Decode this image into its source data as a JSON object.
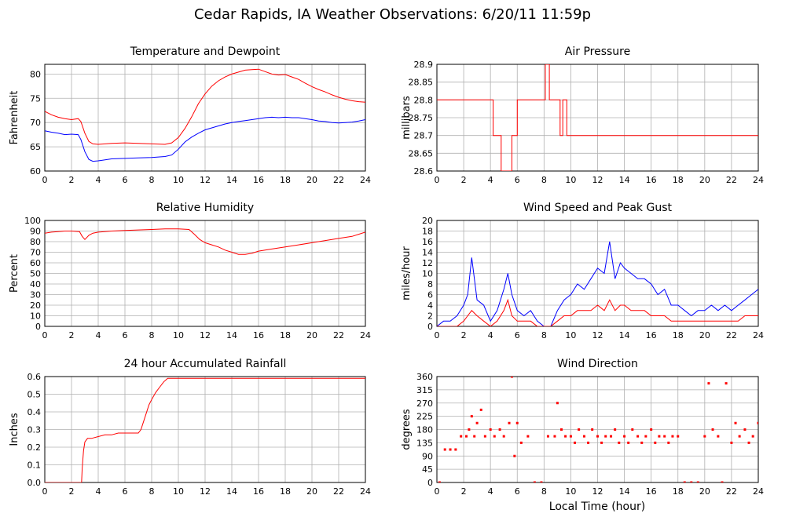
{
  "title": "Cedar Rapids, IA Weather Observations: 6/20/11 11:59p",
  "xlabel": "Local Time (hour)",
  "colors": {
    "red": "#ff0000",
    "blue": "#0000ff",
    "grid": "#b0b0b0"
  },
  "chart_data": [
    {
      "id": "temp",
      "type": "line",
      "title": "Temperature and Dewpoint",
      "ylabel": "Fahrenheit",
      "xlim": [
        0,
        24
      ],
      "ylim": [
        60,
        82
      ],
      "xticks": [
        0,
        2,
        4,
        6,
        8,
        10,
        12,
        14,
        16,
        18,
        20,
        22,
        24
      ],
      "yticks": [
        60,
        65,
        70,
        75,
        80
      ],
      "grid": true,
      "series": [
        {
          "color": "#ff0000",
          "x": [
            0,
            0.5,
            1,
            1.5,
            2,
            2.5,
            2.7,
            3.0,
            3.3,
            3.6,
            4,
            5,
            6,
            7,
            8,
            9,
            9.5,
            10,
            10.5,
            11,
            11.5,
            12,
            12.5,
            13,
            13.5,
            14,
            14.5,
            15,
            15.5,
            16,
            16.5,
            17,
            17.5,
            18,
            18.5,
            19,
            19.5,
            20,
            20.5,
            21,
            21.5,
            22,
            22.5,
            23,
            23.5,
            24
          ],
          "y": [
            72.3,
            71.6,
            71.1,
            70.8,
            70.6,
            70.8,
            70.2,
            67.8,
            66.1,
            65.6,
            65.5,
            65.7,
            65.8,
            65.7,
            65.6,
            65.5,
            65.8,
            66.9,
            68.8,
            71.2,
            73.9,
            75.9,
            77.5,
            78.6,
            79.4,
            80.0,
            80.4,
            80.8,
            80.9,
            81.0,
            80.5,
            80.0,
            79.8,
            79.9,
            79.4,
            78.9,
            78.1,
            77.4,
            76.8,
            76.3,
            75.7,
            75.2,
            74.8,
            74.5,
            74.3,
            74.2
          ]
        },
        {
          "color": "#0000ff",
          "x": [
            0,
            0.5,
            1,
            1.5,
            2,
            2.5,
            2.7,
            3.0,
            3.3,
            3.6,
            4,
            5,
            6,
            7,
            8,
            9,
            9.5,
            10,
            10.5,
            11,
            11.5,
            12,
            12.5,
            13,
            13.5,
            14,
            14.5,
            15,
            15.5,
            16,
            16.5,
            17,
            17.5,
            18,
            18.5,
            19,
            19.5,
            20,
            20.5,
            21,
            21.5,
            22,
            22.5,
            23,
            23.5,
            24
          ],
          "y": [
            68.3,
            68.0,
            67.8,
            67.5,
            67.6,
            67.5,
            66.5,
            64.0,
            62.4,
            62.0,
            62.1,
            62.5,
            62.6,
            62.7,
            62.8,
            63.0,
            63.3,
            64.5,
            66.0,
            67.0,
            67.8,
            68.5,
            68.9,
            69.3,
            69.7,
            70.0,
            70.2,
            70.4,
            70.6,
            70.8,
            71.0,
            71.1,
            71.0,
            71.1,
            71.0,
            71.0,
            70.8,
            70.6,
            70.3,
            70.2,
            70.0,
            69.9,
            70.0,
            70.1,
            70.3,
            70.6
          ]
        }
      ]
    },
    {
      "id": "pressure",
      "type": "line",
      "title": "Air Pressure",
      "ylabel": "millibars",
      "xlim": [
        0,
        24
      ],
      "ylim": [
        28.6,
        28.9
      ],
      "xticks": [
        0,
        2,
        4,
        6,
        8,
        10,
        12,
        14,
        16,
        18,
        20,
        22,
        24
      ],
      "yticks": [
        28.6,
        28.65,
        28.7,
        28.75,
        28.8,
        28.85,
        28.9
      ],
      "ytick_labels": [
        "28.6",
        "28.65",
        "28.7",
        "28.75",
        "28.8",
        "28.85",
        "28.9"
      ],
      "grid": true,
      "series": [
        {
          "color": "#ff0000",
          "step": true,
          "x": [
            0,
            4.2,
            4.2,
            4.8,
            4.8,
            5.6,
            5.6,
            6.0,
            6.0,
            8.1,
            8.1,
            8.4,
            8.4,
            9.2,
            9.2,
            9.4,
            9.4,
            9.7,
            9.7,
            24
          ],
          "y": [
            28.8,
            28.8,
            28.7,
            28.7,
            28.6,
            28.6,
            28.7,
            28.7,
            28.8,
            28.8,
            28.9,
            28.9,
            28.8,
            28.8,
            28.7,
            28.7,
            28.8,
            28.8,
            28.7,
            28.7
          ]
        }
      ]
    },
    {
      "id": "humidity",
      "type": "line",
      "title": "Relative Humidity",
      "ylabel": "Percent",
      "xlim": [
        0,
        24
      ],
      "ylim": [
        0,
        100
      ],
      "xticks": [
        0,
        2,
        4,
        6,
        8,
        10,
        12,
        14,
        16,
        18,
        20,
        22,
        24
      ],
      "yticks": [
        0,
        10,
        20,
        30,
        40,
        50,
        60,
        70,
        80,
        90,
        100
      ],
      "grid": true,
      "series": [
        {
          "color": "#ff0000",
          "x": [
            0,
            0.5,
            1,
            1.5,
            2,
            2.6,
            2.8,
            3.0,
            3.3,
            3.6,
            4,
            5,
            6,
            7,
            8,
            9,
            10,
            10.8,
            11.2,
            11.6,
            12,
            12.5,
            13,
            13.5,
            14,
            14.5,
            15,
            15.5,
            16,
            17,
            18,
            19,
            20,
            21,
            22,
            23,
            23.5,
            24
          ],
          "y": [
            88,
            89,
            89.5,
            90,
            90,
            89.5,
            85,
            82,
            86,
            88,
            89,
            90,
            90.5,
            91,
            91.5,
            92,
            92,
            91.5,
            87,
            82,
            79,
            77,
            75,
            72,
            70,
            68,
            68,
            69,
            71,
            73,
            75,
            77,
            79,
            81,
            83,
            85,
            87,
            89
          ]
        }
      ]
    },
    {
      "id": "wind",
      "type": "line",
      "title": "Wind Speed and Peak Gust",
      "ylabel": "miles/hour",
      "xlim": [
        0,
        24
      ],
      "ylim": [
        0,
        20
      ],
      "xticks": [
        0,
        2,
        4,
        6,
        8,
        10,
        12,
        14,
        16,
        18,
        20,
        22,
        24
      ],
      "yticks": [
        0,
        2,
        4,
        6,
        8,
        10,
        12,
        14,
        16,
        18,
        20
      ],
      "grid": true,
      "series": [
        {
          "color": "#0000ff",
          "x": [
            0,
            0.5,
            1,
            1.5,
            2,
            2.3,
            2.6,
            3,
            3.5,
            4,
            4.5,
            5,
            5.3,
            5.6,
            6,
            6.5,
            7,
            7.5,
            8,
            8.5,
            9,
            9.5,
            10,
            10.5,
            11,
            11.5,
            12,
            12.5,
            12.9,
            13.3,
            13.7,
            14,
            14.5,
            15,
            15.5,
            16,
            16.5,
            17,
            17.5,
            18,
            18.5,
            19,
            19.5,
            20,
            20.5,
            21,
            21.5,
            22,
            22.5,
            23,
            23.5,
            24
          ],
          "y": [
            0,
            1,
            1,
            2,
            4,
            6,
            13,
            5,
            4,
            1,
            3,
            7,
            10,
            6,
            3,
            2,
            3,
            1,
            0,
            0,
            3,
            5,
            6,
            8,
            7,
            9,
            11,
            10,
            16,
            9,
            12,
            11,
            10,
            9,
            9,
            8,
            6,
            7,
            4,
            4,
            3,
            2,
            3,
            3,
            4,
            3,
            4,
            3,
            4,
            5,
            6,
            7
          ]
        },
        {
          "color": "#ff0000",
          "x": [
            0,
            0.5,
            1,
            1.5,
            2,
            2.3,
            2.6,
            3,
            3.5,
            4,
            4.5,
            5,
            5.3,
            5.6,
            6,
            6.5,
            7,
            7.5,
            8,
            8.5,
            9,
            9.5,
            10,
            10.5,
            11,
            11.5,
            12,
            12.5,
            12.9,
            13.3,
            13.7,
            14,
            14.5,
            15,
            15.5,
            16,
            16.5,
            17,
            17.5,
            18,
            18.5,
            19,
            19.5,
            20,
            20.5,
            21,
            21.5,
            22,
            22.5,
            23,
            23.5,
            24
          ],
          "y": [
            0,
            0,
            0,
            0,
            1,
            2,
            3,
            2,
            1,
            0,
            1,
            3,
            5,
            2,
            1,
            1,
            1,
            0,
            0,
            0,
            1,
            2,
            2,
            3,
            3,
            3,
            4,
            3,
            5,
            3,
            4,
            4,
            3,
            3,
            3,
            2,
            2,
            2,
            1,
            1,
            1,
            1,
            1,
            1,
            1,
            1,
            1,
            1,
            1,
            2,
            2,
            2
          ]
        }
      ]
    },
    {
      "id": "rain",
      "type": "line",
      "title": "24 hour Accumulated Rainfall",
      "ylabel": "Inches",
      "xlim": [
        0,
        24
      ],
      "ylim": [
        0,
        0.6
      ],
      "xticks": [
        0,
        2,
        4,
        6,
        8,
        10,
        12,
        14,
        16,
        18,
        20,
        22,
        24
      ],
      "yticks": [
        0,
        0.1,
        0.2,
        0.3,
        0.4,
        0.5,
        0.6
      ],
      "ytick_labels": [
        "0.0",
        "0.1",
        "0.2",
        "0.3",
        "0.4",
        "0.5",
        "0.6"
      ],
      "grid": true,
      "series": [
        {
          "color": "#ff0000",
          "x": [
            0,
            2.75,
            2.8,
            2.9,
            3.0,
            3.2,
            3.5,
            4.0,
            4.5,
            5.0,
            5.5,
            6.0,
            6.5,
            7.0,
            7.2,
            7.5,
            7.8,
            8.0,
            8.3,
            8.6,
            8.9,
            9.2,
            10,
            12,
            16,
            20,
            24
          ],
          "y": [
            0,
            0,
            0.08,
            0.18,
            0.23,
            0.25,
            0.25,
            0.26,
            0.27,
            0.27,
            0.28,
            0.28,
            0.28,
            0.28,
            0.3,
            0.37,
            0.44,
            0.47,
            0.51,
            0.54,
            0.57,
            0.59,
            0.59,
            0.59,
            0.59,
            0.59,
            0.59
          ]
        }
      ]
    },
    {
      "id": "direction",
      "type": "scatter",
      "title": "Wind Direction",
      "ylabel": "degrees",
      "xlim": [
        0,
        24
      ],
      "ylim": [
        0,
        360
      ],
      "xticks": [
        0,
        2,
        4,
        6,
        8,
        10,
        12,
        14,
        16,
        18,
        20,
        22,
        24
      ],
      "yticks": [
        0,
        45,
        90,
        135,
        180,
        225,
        270,
        315,
        360
      ],
      "grid": true,
      "series": [
        {
          "color": "#ff0000",
          "x": [
            0.2,
            0.6,
            1.0,
            1.4,
            1.8,
            2.2,
            2.4,
            2.6,
            2.8,
            3.0,
            3.3,
            3.6,
            4.0,
            4.3,
            4.7,
            5.0,
            5.4,
            5.6,
            5.8,
            6.0,
            6.3,
            6.8,
            7.3,
            7.8,
            8.3,
            8.8,
            9.0,
            9.3,
            9.6,
            10.0,
            10.3,
            10.6,
            11.0,
            11.3,
            11.6,
            12.0,
            12.3,
            12.6,
            13.0,
            13.3,
            13.6,
            14.0,
            14.3,
            14.6,
            15.0,
            15.3,
            15.6,
            16.0,
            16.3,
            16.6,
            17.0,
            17.3,
            17.6,
            18.0,
            18.5,
            19.0,
            19.5,
            20.0,
            20.3,
            20.6,
            21.0,
            21.3,
            21.6,
            22.0,
            22.3,
            22.6,
            23.0,
            23.3,
            23.6,
            24.0
          ],
          "y": [
            0,
            112,
            112,
            112,
            157,
            157,
            180,
            225,
            157,
            202,
            247,
            157,
            180,
            157,
            180,
            157,
            202,
            360,
            90,
            202,
            135,
            157,
            0,
            0,
            157,
            157,
            270,
            180,
            157,
            157,
            135,
            180,
            157,
            135,
            180,
            157,
            135,
            157,
            157,
            180,
            135,
            157,
            135,
            180,
            157,
            135,
            157,
            180,
            135,
            157,
            157,
            135,
            157,
            157,
            0,
            0,
            0,
            157,
            337,
            180,
            157,
            0,
            337,
            135,
            202,
            157,
            180,
            135,
            157,
            202
          ]
        }
      ]
    }
  ]
}
